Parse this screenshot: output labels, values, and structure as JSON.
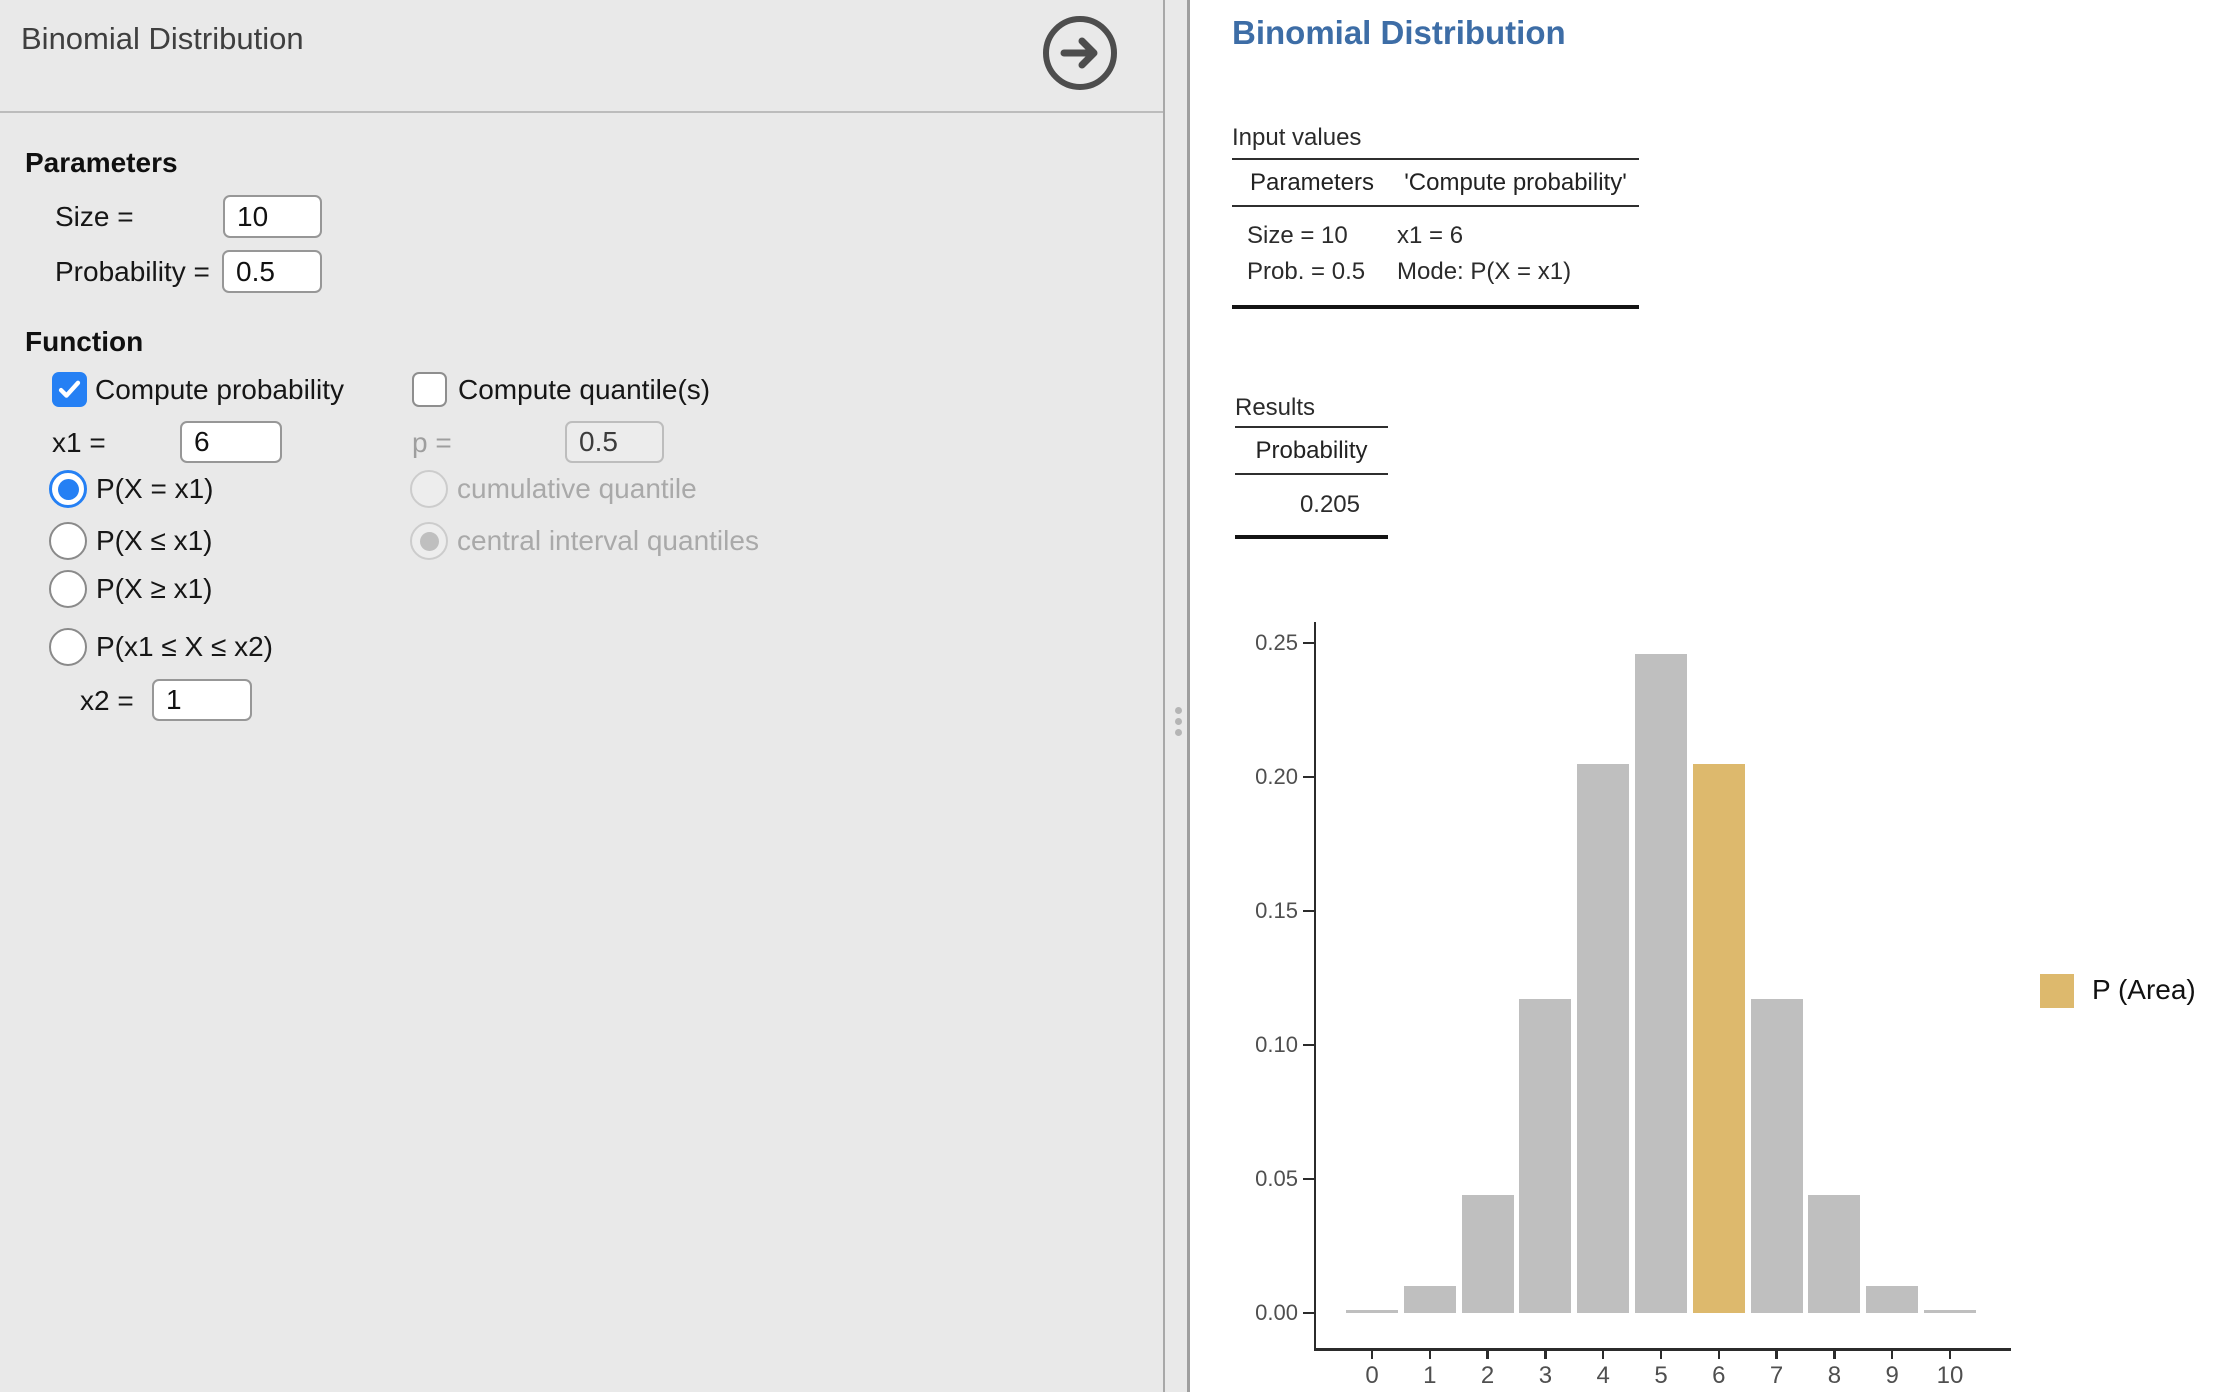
{
  "colors": {
    "accent_blue": "#2580f4",
    "panel_gray": "#e9e9e9",
    "result_title_blue": "#3d6da6",
    "bar_gray": "#bfbfbf",
    "bar_gold": "#ddb96d"
  },
  "left_panel": {
    "title": "Binomial Distribution",
    "forward_icon": "arrow-right-circle-icon",
    "parameters": {
      "heading": "Parameters",
      "size_label": "Size =",
      "size_value": "10",
      "probability_label": "Probability =",
      "probability_value": "0.5"
    },
    "function": {
      "heading": "Function",
      "compute_probability": {
        "label": "Compute probability",
        "checked": true
      },
      "x1_label": "x1 =",
      "x1_value": "6",
      "probability_radios": [
        {
          "label": "P(X = x1)",
          "selected": true
        },
        {
          "label": "P(X ≤ x1)",
          "selected": false
        },
        {
          "label": "P(X ≥ x1)",
          "selected": false
        },
        {
          "label": "P(x1 ≤ X ≤ x2)",
          "selected": false
        }
      ],
      "x2_label": "x2 =",
      "x2_value": "1",
      "compute_quantiles": {
        "label": "Compute quantile(s)",
        "checked": false
      },
      "p_label": "p =",
      "p_value": "0.5",
      "quantile_radios": [
        {
          "label": "cumulative quantile",
          "selected": false
        },
        {
          "label": "central interval quantiles",
          "selected": true
        }
      ]
    }
  },
  "right_panel": {
    "title": "Binomial Distribution",
    "input_values": {
      "caption": "Input values",
      "headers": [
        "Parameters",
        "'Compute probability'"
      ],
      "rows": [
        [
          "Size = 10",
          "x1 = 6"
        ],
        [
          "Prob. = 0.5",
          "Mode: P(X = x1)"
        ]
      ]
    },
    "results": {
      "caption": "Results",
      "header": "Probability",
      "value": "0.205"
    }
  },
  "chart_data": {
    "type": "bar",
    "title": "",
    "xlabel": "",
    "ylabel": "",
    "categories": [
      "0",
      "1",
      "2",
      "3",
      "4",
      "5",
      "6",
      "7",
      "8",
      "9",
      "10"
    ],
    "values": [
      0.001,
      0.01,
      0.044,
      0.117,
      0.205,
      0.246,
      0.205,
      0.117,
      0.044,
      0.01,
      0.001
    ],
    "highlight_index": 6,
    "bar_color": "#bfbfbf",
    "highlight_color": "#ddb96d",
    "ylim": [
      0,
      0.26
    ],
    "yticks": [
      0.0,
      0.05,
      0.1,
      0.15,
      0.2,
      0.25
    ],
    "ytick_labels": [
      "0.00",
      "0.05",
      "0.10",
      "0.15",
      "0.20",
      "0.25"
    ],
    "legend": "P (Area)",
    "legend_position": "right",
    "grid": false
  }
}
